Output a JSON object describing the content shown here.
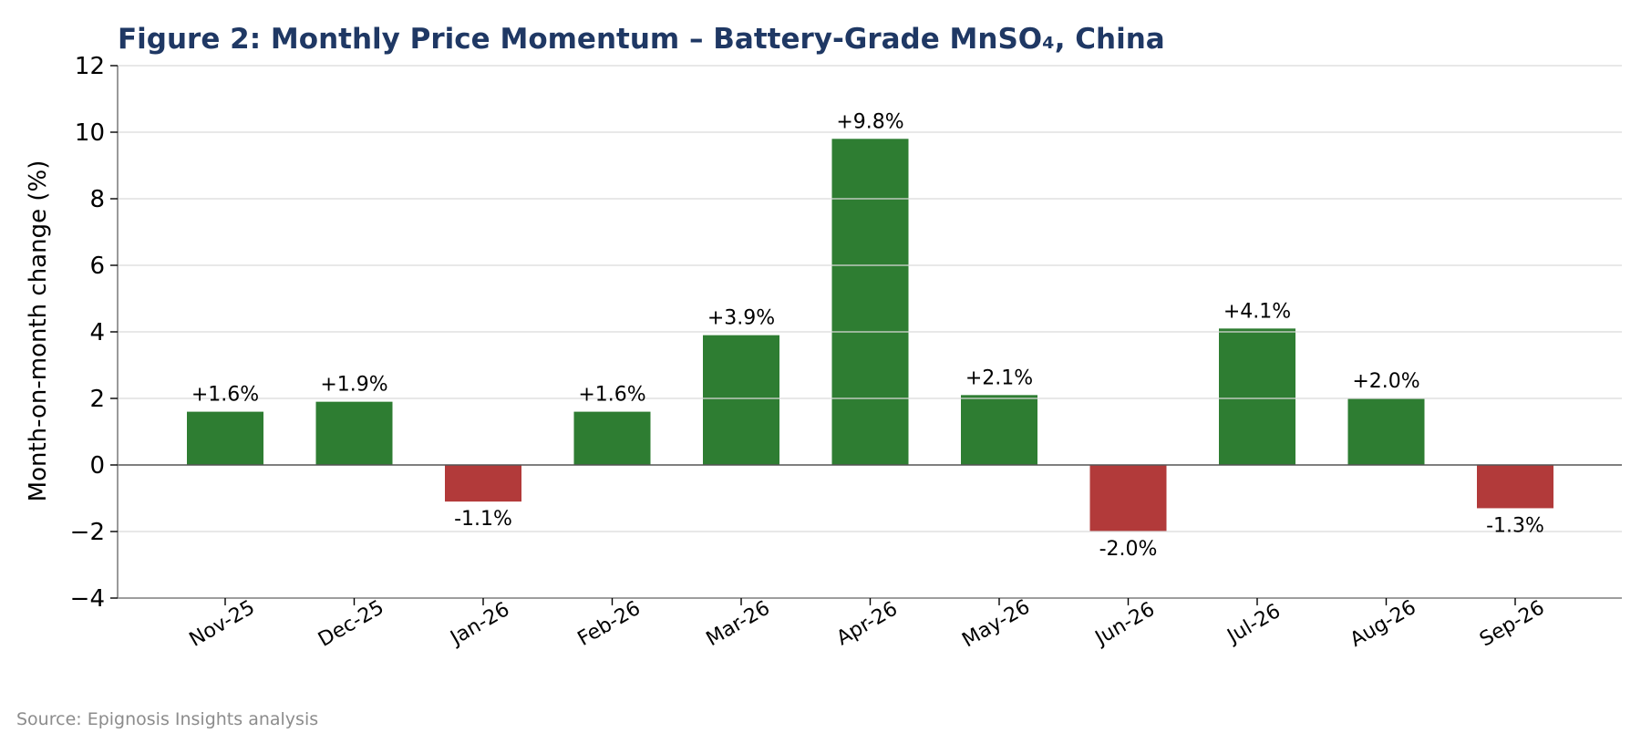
{
  "chart_data": {
    "type": "bar",
    "title": "Figure 2: Monthly Price Momentum – Battery-Grade MnSO₄, China",
    "ylabel": "Month-on-month change (%)",
    "xlabel": "",
    "categories": [
      "Nov-25",
      "Dec-25",
      "Jan-26",
      "Feb-26",
      "Mar-26",
      "Apr-26",
      "May-26",
      "Jun-26",
      "Jul-26",
      "Aug-26",
      "Sep-26"
    ],
    "values": [
      1.6,
      1.9,
      -1.1,
      1.6,
      3.9,
      9.8,
      2.1,
      -2.0,
      4.1,
      2.0,
      -1.3
    ],
    "data_labels": [
      "+1.6%",
      "+1.9%",
      "-1.1%",
      "+1.6%",
      "+3.9%",
      "+9.8%",
      "+2.1%",
      "-2.0%",
      "+4.1%",
      "+2.0%",
      "-1.3%"
    ],
    "ylim": [
      -4,
      12
    ],
    "yticks": [
      -4,
      -2,
      0,
      2,
      4,
      6,
      8,
      10,
      12
    ],
    "ytick_labels": [
      "−4",
      "−2",
      "0",
      "2",
      "4",
      "6",
      "8",
      "10",
      "12"
    ],
    "grid": "horizontal",
    "legend": "none",
    "colors": {
      "positive": "#2e7d32",
      "negative": "#b23a3a",
      "title": "#1f3864",
      "grid": "#d9d9d9",
      "source": "#8c8c8c"
    }
  },
  "source_note": "Source: Epignosis Insights analysis"
}
